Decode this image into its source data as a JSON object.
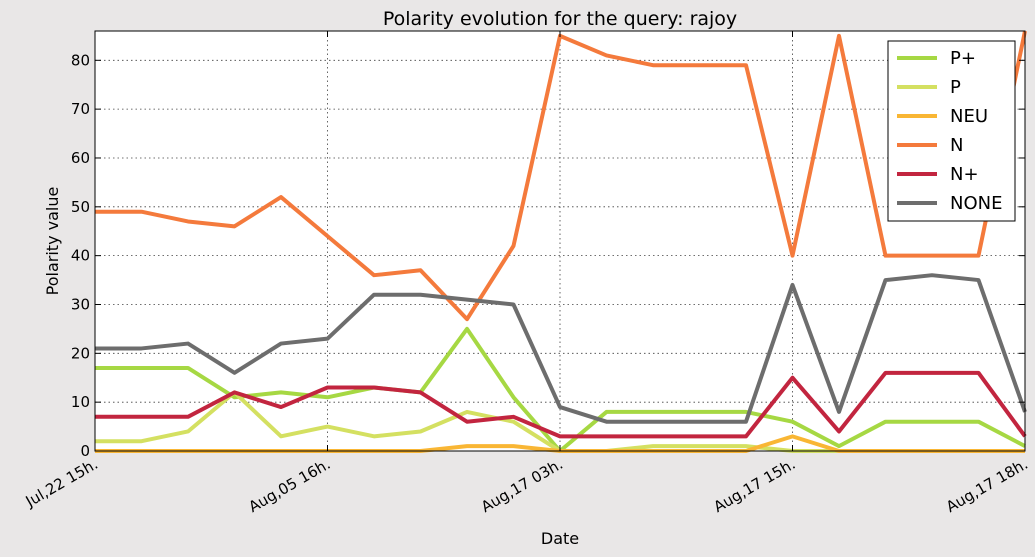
{
  "chart_data": {
    "type": "line",
    "title": "Polarity evolution for the query: rajoy",
    "xlabel": "Date",
    "ylabel": "Polarity value",
    "ylim": [
      0,
      86
    ],
    "yticks": [
      0,
      10,
      20,
      30,
      40,
      50,
      60,
      70,
      80
    ],
    "x_tick_labels": [
      "Jul,22 15h.",
      "Aug,05 16h.",
      "Aug,17 03h.",
      "Aug,17 15h.",
      "Aug,17 18h."
    ],
    "x_tick_positions": [
      0,
      5,
      10,
      15,
      20
    ],
    "x": [
      0,
      1,
      2,
      3,
      4,
      5,
      6,
      7,
      8,
      9,
      10,
      11,
      12,
      13,
      14,
      15,
      16,
      17,
      18,
      19,
      20
    ],
    "grid": true,
    "legend_position": "top-right",
    "series": [
      {
        "name": "P+",
        "color": "#a6d843",
        "values": [
          17,
          17,
          17,
          11,
          12,
          11,
          13,
          12,
          25,
          11,
          0,
          8,
          8,
          8,
          8,
          6,
          1,
          6,
          6,
          6,
          1
        ]
      },
      {
        "name": "P",
        "color": "#d4e061",
        "values": [
          2,
          2,
          4,
          12,
          3,
          5,
          3,
          4,
          8,
          6,
          0,
          0,
          1,
          1,
          1,
          0,
          0,
          0,
          0,
          0,
          0
        ]
      },
      {
        "name": "NEU",
        "color": "#f9b634",
        "values": [
          0,
          0,
          0,
          0,
          0,
          0,
          0,
          0,
          1,
          1,
          0,
          0,
          0,
          0,
          0,
          3,
          0,
          0,
          0,
          0,
          0
        ]
      },
      {
        "name": "N",
        "color": "#f47a3c",
        "values": [
          49,
          49,
          47,
          46,
          52,
          44,
          36,
          37,
          27,
          42,
          85,
          81,
          79,
          79,
          79,
          40,
          85,
          40,
          40,
          40,
          86
        ]
      },
      {
        "name": "N+",
        "color": "#c2253f",
        "values": [
          7,
          7,
          7,
          12,
          9,
          13,
          13,
          12,
          6,
          7,
          3,
          3,
          3,
          3,
          3,
          15,
          4,
          16,
          16,
          16,
          3
        ]
      },
      {
        "name": "NONE",
        "color": "#6d6d6d",
        "values": [
          21,
          21,
          22,
          16,
          22,
          23,
          32,
          32,
          31,
          30,
          9,
          6,
          6,
          6,
          6,
          34,
          8,
          35,
          36,
          35,
          8
        ]
      }
    ]
  }
}
